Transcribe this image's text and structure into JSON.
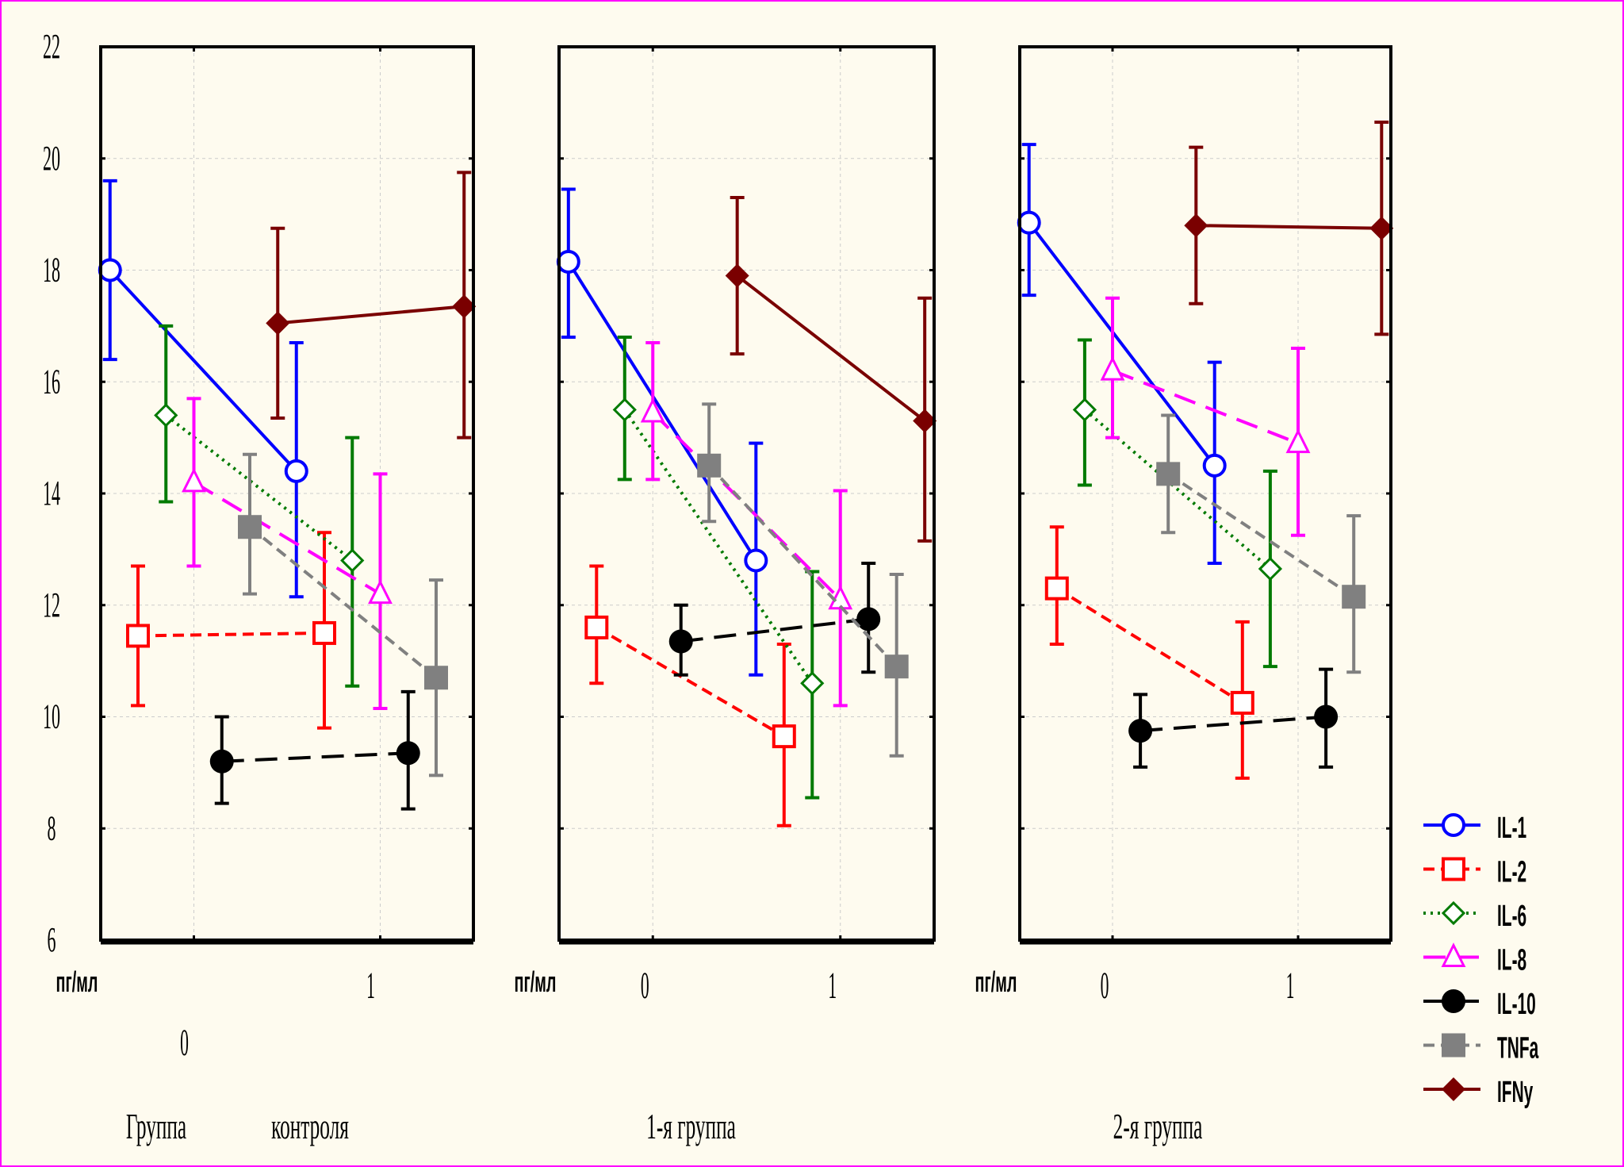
{
  "chart_data": {
    "type": "line",
    "ylim": [
      6,
      22
    ],
    "yticks": [
      6,
      8,
      10,
      12,
      14,
      16,
      18,
      20,
      22
    ],
    "xticks": [
      "0",
      "1"
    ],
    "ylabel": "пг/мл",
    "grid": true,
    "legend_placement": "bottom-right",
    "legend": [
      {
        "name": "IL-1",
        "color": "#0000ff",
        "marker": "open-circle",
        "line": "solid"
      },
      {
        "name": "IL-2",
        "color": "#ff0000",
        "marker": "open-square",
        "line": "dashed"
      },
      {
        "name": "IL-6",
        "color": "#007a00",
        "marker": "open-diamond",
        "line": "dotted"
      },
      {
        "name": "IL-8",
        "color": "#ff00ff",
        "marker": "open-triangle",
        "line": "long-dash"
      },
      {
        "name": "IL-10",
        "color": "#000000",
        "marker": "filled-circle",
        "line": "long-dash"
      },
      {
        "name": "TNFa",
        "color": "#808080",
        "marker": "filled-square",
        "line": "dashed"
      },
      {
        "name": "IFNy",
        "color": "#7a0000",
        "marker": "filled-diamond",
        "line": "solid"
      }
    ],
    "panels": [
      {
        "label_parts": [
          "Группа",
          "контроля"
        ],
        "series": [
          {
            "name": "IL-1",
            "mean": [
              18.0,
              14.4
            ],
            "upper": [
              19.6,
              16.7
            ],
            "lower": [
              16.4,
              12.15
            ]
          },
          {
            "name": "IL-2",
            "mean": [
              11.45,
              11.5
            ],
            "upper": [
              12.7,
              13.3
            ],
            "lower": [
              10.2,
              9.8
            ]
          },
          {
            "name": "IL-6",
            "mean": [
              15.4,
              12.8
            ],
            "upper": [
              17.0,
              15.0
            ],
            "lower": [
              13.85,
              10.55
            ]
          },
          {
            "name": "IL-8",
            "mean": [
              14.2,
              12.2
            ],
            "upper": [
              15.7,
              14.35
            ],
            "lower": [
              12.7,
              10.15
            ]
          },
          {
            "name": "IL-10",
            "mean": [
              9.2,
              9.35
            ],
            "upper": [
              10.0,
              10.45
            ],
            "lower": [
              8.45,
              8.35
            ]
          },
          {
            "name": "TNFa",
            "mean": [
              13.4,
              10.7
            ],
            "upper": [
              14.7,
              12.45
            ],
            "lower": [
              12.2,
              8.95
            ]
          },
          {
            "name": "IFNy",
            "mean": [
              17.05,
              17.35
            ],
            "upper": [
              18.75,
              19.75
            ],
            "lower": [
              15.35,
              15.0
            ]
          }
        ]
      },
      {
        "label_parts": [
          "1-я группа"
        ],
        "series": [
          {
            "name": "IL-1",
            "mean": [
              18.15,
              12.8
            ],
            "upper": [
              19.45,
              14.9
            ],
            "lower": [
              16.8,
              10.75
            ]
          },
          {
            "name": "IL-2",
            "mean": [
              11.6,
              9.65
            ],
            "upper": [
              12.7,
              11.3
            ],
            "lower": [
              10.6,
              8.05
            ]
          },
          {
            "name": "IL-6",
            "mean": [
              15.5,
              10.6
            ],
            "upper": [
              16.8,
              12.6
            ],
            "lower": [
              14.25,
              8.55
            ]
          },
          {
            "name": "IL-8",
            "mean": [
              15.45,
              12.1
            ],
            "upper": [
              16.7,
              14.05
            ],
            "lower": [
              14.25,
              10.2
            ]
          },
          {
            "name": "IL-10",
            "mean": [
              11.35,
              11.75
            ],
            "upper": [
              12.0,
              12.75
            ],
            "lower": [
              10.75,
              10.8
            ]
          },
          {
            "name": "TNFa",
            "mean": [
              14.5,
              10.9
            ],
            "upper": [
              15.6,
              12.55
            ],
            "lower": [
              13.5,
              9.3
            ]
          },
          {
            "name": "IFNy",
            "mean": [
              17.9,
              15.3
            ],
            "upper": [
              19.3,
              17.5
            ],
            "lower": [
              16.5,
              13.15
            ]
          }
        ]
      },
      {
        "label_parts": [
          "2-я группа"
        ],
        "series": [
          {
            "name": "IL-1",
            "mean": [
              18.85,
              14.5
            ],
            "upper": [
              20.25,
              16.35
            ],
            "lower": [
              17.55,
              12.75
            ]
          },
          {
            "name": "IL-2",
            "mean": [
              12.3,
              10.25
            ],
            "upper": [
              13.4,
              11.7
            ],
            "lower": [
              11.3,
              8.9
            ]
          },
          {
            "name": "IL-6",
            "mean": [
              15.5,
              12.65
            ],
            "upper": [
              16.75,
              14.4
            ],
            "lower": [
              14.15,
              10.9
            ]
          },
          {
            "name": "IL-8",
            "mean": [
              16.2,
              14.9
            ],
            "upper": [
              17.5,
              16.6
            ],
            "lower": [
              15.0,
              13.25
            ]
          },
          {
            "name": "IL-10",
            "mean": [
              9.75,
              10.0
            ],
            "upper": [
              10.4,
              10.85
            ],
            "lower": [
              9.1,
              9.1
            ]
          },
          {
            "name": "TNFa",
            "mean": [
              14.35,
              12.15
            ],
            "upper": [
              15.4,
              13.6
            ],
            "lower": [
              13.3,
              10.8
            ]
          },
          {
            "name": "IFNy",
            "mean": [
              18.8,
              18.75
            ],
            "upper": [
              20.2,
              20.65
            ],
            "lower": [
              17.4,
              16.85
            ]
          }
        ]
      }
    ]
  }
}
